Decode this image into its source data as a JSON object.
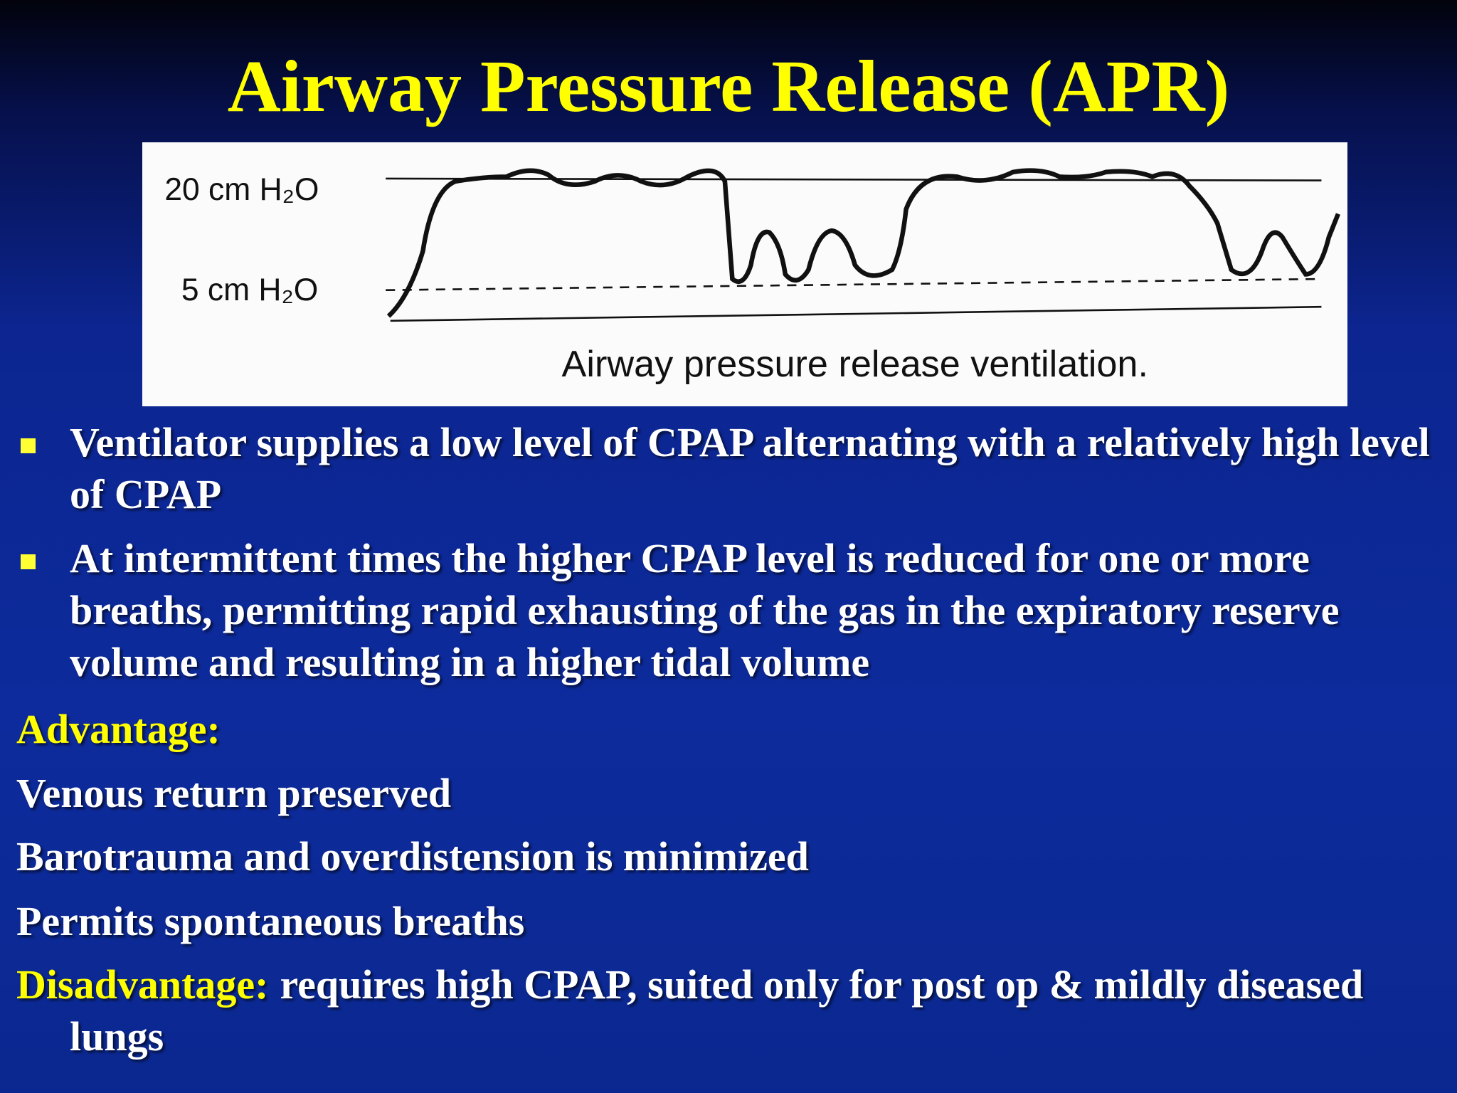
{
  "title": "Airway Pressure Release (APR)",
  "figure": {
    "y_labels": [
      "20 cm H₂O",
      "5 cm H₂O"
    ],
    "caption": "Airway pressure release ventilation."
  },
  "bullets": [
    "Ventilator supplies a low level of CPAP alternating with a relatively high level of CPAP",
    "At intermittent times the higher CPAP level is reduced for one or more breaths, permitting rapid exhausting of the gas in the expiratory reserve volume and resulting in a higher tidal volume"
  ],
  "advantage": {
    "heading": "Advantage:",
    "items": [
      "Venous return preserved",
      "Barotrauma and overdistension is minimized",
      "Permits spontaneous breaths"
    ]
  },
  "disadvantage": {
    "label": "Disadvantage:",
    "text": "requires high CPAP, suited only for post op & mildly diseased lungs"
  }
}
